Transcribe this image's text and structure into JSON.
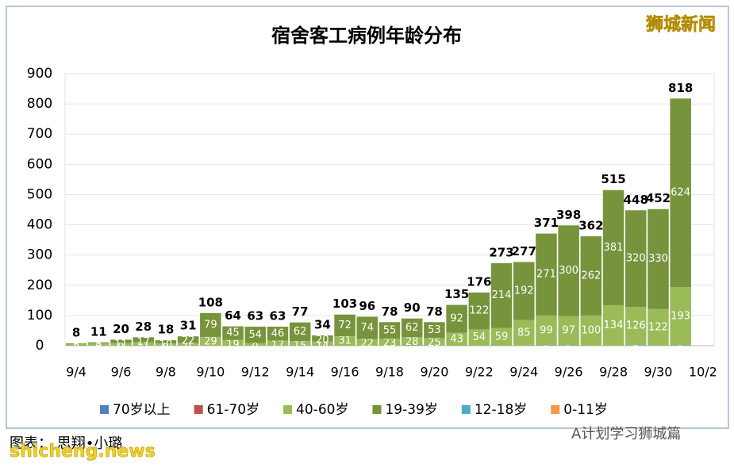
{
  "chart_data": {
    "type": "stacked-bar",
    "title": "宿舍客工病例年龄分布",
    "categories": [
      "9/4",
      null,
      "9/6",
      null,
      "9/8",
      null,
      "9/10",
      null,
      "9/12",
      null,
      "9/14",
      null,
      "9/16",
      null,
      "9/18",
      null,
      "9/20",
      null,
      "9/22",
      null,
      "9/24",
      null,
      "9/26",
      null,
      "9/28",
      null,
      "9/30",
      null,
      "10/2"
    ],
    "series": [
      {
        "name": "70岁以上",
        "color": "#4f81bd",
        "values": [
          null,
          null,
          null,
          null,
          null,
          null,
          null,
          null,
          null,
          null,
          null,
          null,
          null,
          null,
          null,
          null,
          null,
          null,
          null,
          null,
          null,
          null,
          null,
          null,
          null,
          null,
          null,
          null,
          null
        ]
      },
      {
        "name": "61-70岁",
        "color": "#c0504d",
        "values": [
          null,
          null,
          null,
          null,
          null,
          null,
          null,
          null,
          null,
          null,
          null,
          null,
          null,
          null,
          null,
          null,
          null,
          null,
          null,
          null,
          null,
          null,
          null,
          null,
          null,
          null,
          null,
          null,
          null
        ]
      },
      {
        "name": "40-60岁",
        "color": "#9bbb59",
        "values": [
          6,
          8,
          9,
          11,
          8,
          9,
          29,
          19,
          9,
          17,
          15,
          14,
          31,
          22,
          23,
          28,
          25,
          43,
          54,
          59,
          85,
          99,
          97,
          100,
          134,
          126,
          122,
          193,
          null
        ]
      },
      {
        "name": "19-39岁",
        "color": "#77933c",
        "values": [
          2,
          3,
          11,
          17,
          10,
          22,
          79,
          45,
          54,
          46,
          62,
          20,
          72,
          74,
          55,
          62,
          53,
          92,
          122,
          214,
          192,
          271,
          300,
          262,
          381,
          320,
          330,
          624,
          null
        ]
      },
      {
        "name": "12-18岁",
        "color": "#4bacc6",
        "values": [
          null,
          null,
          null,
          null,
          null,
          null,
          null,
          null,
          null,
          null,
          null,
          null,
          null,
          null,
          null,
          null,
          null,
          null,
          null,
          null,
          null,
          1,
          1,
          null,
          null,
          2,
          null,
          1,
          null
        ]
      },
      {
        "name": "0-11岁",
        "color": "#f79646",
        "values": [
          null,
          null,
          null,
          null,
          null,
          null,
          null,
          null,
          null,
          null,
          null,
          null,
          null,
          null,
          null,
          null,
          null,
          null,
          null,
          null,
          null,
          null,
          null,
          null,
          null,
          null,
          null,
          null,
          null
        ]
      }
    ],
    "totals": [
      8,
      11,
      20,
      28,
      18,
      31,
      108,
      64,
      63,
      63,
      77,
      34,
      103,
      96,
      78,
      90,
      78,
      135,
      176,
      273,
      277,
      371,
      398,
      362,
      515,
      448,
      452,
      818,
      null
    ],
    "ylim": [
      0,
      900
    ],
    "yticks": [
      0,
      100,
      200,
      300,
      400,
      500,
      600,
      700,
      800,
      900
    ],
    "grid": true,
    "legend": "bottom"
  },
  "page": {
    "watermark": "狮城新闻",
    "credit": "图表：  思翔•小璐",
    "site": "shicheng.news",
    "wechat": "A计划学习狮城篇"
  }
}
